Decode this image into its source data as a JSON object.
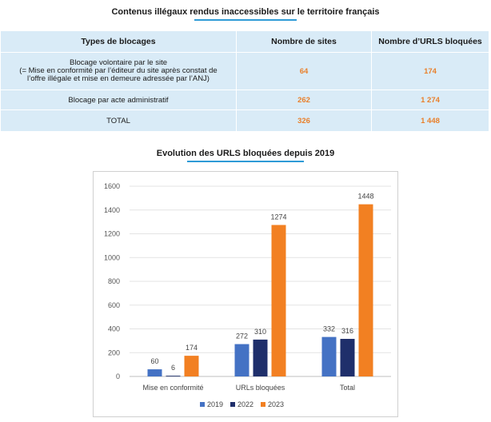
{
  "table_section": {
    "title": "Contenus illégaux rendus inaccessibles sur le territoire français",
    "headers": [
      "Types de blocages",
      "Nombre de sites",
      "Nombre d’URLS bloquées"
    ],
    "rows": [
      {
        "label_lines": [
          "Blocage volontaire par le site",
          "(= Mise en conformité par l’éditeur du site après constat de",
          "l’offre illégale et mise en demeure adressée par l’ANJ)"
        ],
        "sites": "64",
        "urls": "174"
      },
      {
        "label_lines": [
          "Blocage par acte administratif"
        ],
        "sites": "262",
        "urls": "1 274"
      },
      {
        "label_lines": [
          "TOTAL"
        ],
        "sites": "326",
        "urls": "1 448"
      }
    ]
  },
  "chart_section": {
    "title": "Evolution des URLS bloquées depuis 2019"
  },
  "colors": {
    "table_bg": "#d9ebf7",
    "number_orange": "#e9802c",
    "title_rule": "#2e9bd6",
    "series_2019": "#4472c4",
    "series_2022": "#1f2f6b",
    "series_2023": "#f28022"
  },
  "chart_data": {
    "type": "bar",
    "title": "Evolution des URLS bloquées depuis 2019",
    "categories": [
      "Mise  en conformité",
      "URLs bloquées",
      "Total"
    ],
    "series": [
      {
        "name": "2019",
        "values": [
          60,
          272,
          332
        ],
        "color": "#4472c4"
      },
      {
        "name": "2022",
        "values": [
          6,
          310,
          316
        ],
        "color": "#1f2f6b"
      },
      {
        "name": "2023",
        "values": [
          174,
          1274,
          1448
        ],
        "color": "#f28022"
      }
    ],
    "ylim": [
      0,
      1600
    ],
    "yticks": [
      0,
      200,
      400,
      600,
      800,
      1000,
      1200,
      1400,
      1600
    ],
    "grid": true,
    "legend": "bottom",
    "xlabel": "",
    "ylabel": ""
  }
}
